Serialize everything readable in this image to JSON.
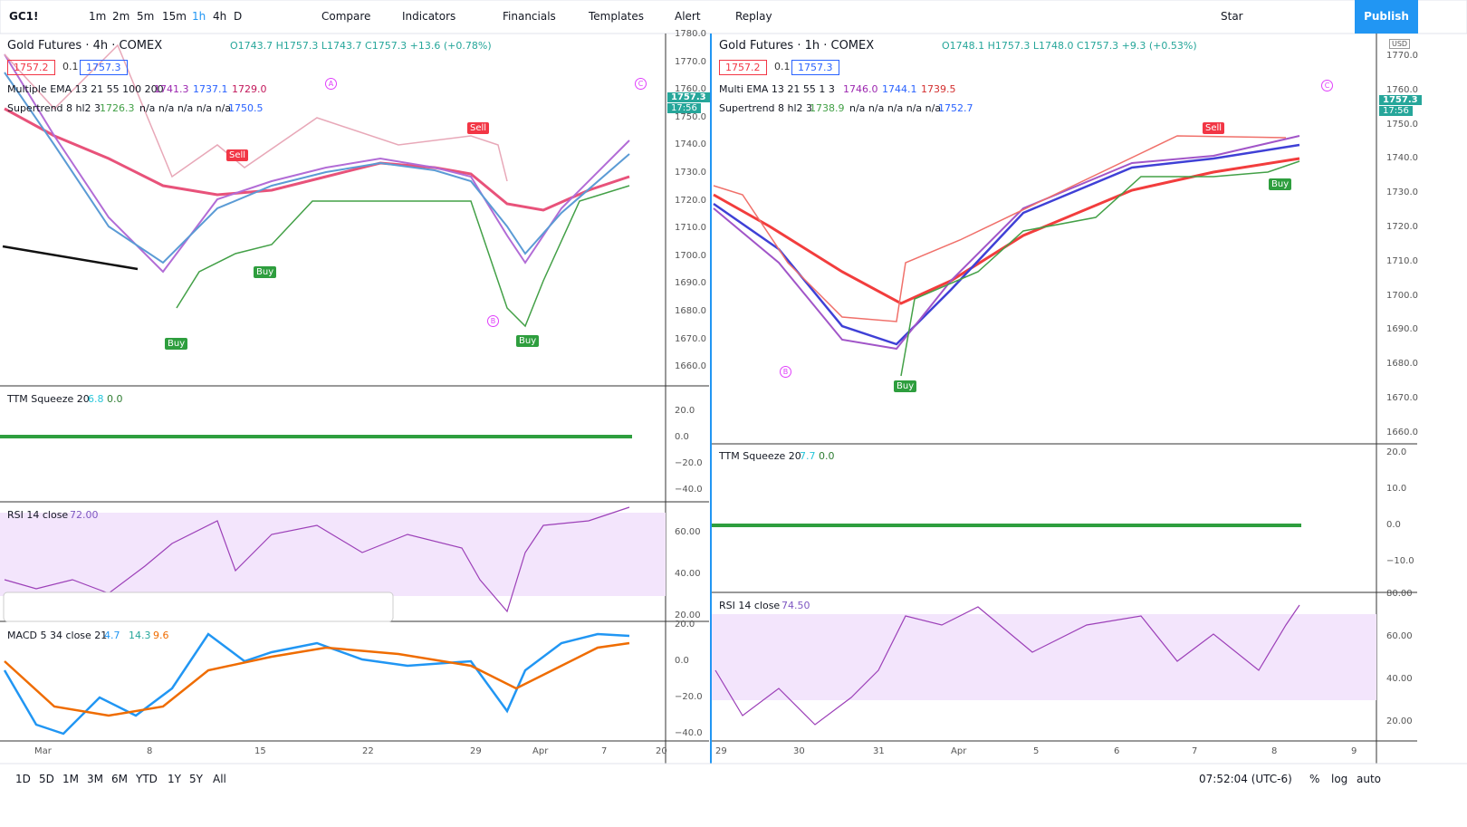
{
  "toolbar": {
    "symbol": "GC1!",
    "intervals": [
      "1m",
      "2m",
      "5m",
      "15m",
      "1h",
      "4h",
      "D"
    ],
    "buttons": [
      "Compare",
      "Indicators",
      "Financials",
      "Templates",
      "Alert",
      "Replay"
    ],
    "layout": "Star",
    "publish": "Publish"
  },
  "left": {
    "title": "Gold Futures · 4h · COMEX",
    "ohlc": "O1743.7 H1757.3 L1743.7 C1757.3 +13.6 (+0.78%)",
    "boxes": [
      "1757.2",
      "0.1",
      "1757.3"
    ],
    "ema": {
      "label": "Multiple EMA 13 21 55 100 200",
      "values": [
        "1741.3",
        "1737.1",
        "1729.0"
      ]
    },
    "supertrend": {
      "label": "Supertrend 8 hl2 3",
      "values": [
        "1726.3",
        "n/a n/a n/a n/a n/a",
        "1750.5"
      ]
    },
    "price_axis": [
      "1780.0",
      "1770.0",
      "1760.0",
      "1750.0",
      "1740.0",
      "1730.0",
      "1720.0",
      "1710.0",
      "1700.0",
      "1690.0",
      "1680.0",
      "1670.0",
      "1660.0"
    ],
    "price_tag": [
      "1757.3",
      "17:56"
    ],
    "ttm": {
      "label": "TTM Squeeze 20",
      "values": [
        "6.8",
        "0.0"
      ],
      "axis": [
        "20.0",
        "0.0",
        "−20.0",
        "−40.0"
      ]
    },
    "rsi": {
      "label": "RSI 14 close",
      "value": "72.00",
      "axis": [
        "60.00",
        "40.00",
        "20.00"
      ]
    },
    "macd": {
      "label": "MACD 5 34 close 21",
      "values": [
        "4.7",
        "14.3",
        "9.6"
      ],
      "axis": [
        "20.0",
        "0.0",
        "−20.0",
        "−40.0"
      ]
    },
    "time_axis": [
      "Mar",
      "8",
      "15",
      "22",
      "29",
      "Apr",
      "7",
      "20"
    ],
    "signals": [
      "Sell",
      "Sell",
      "Buy",
      "Buy",
      "Buy"
    ],
    "markers": [
      "A",
      "B",
      "C"
    ]
  },
  "right": {
    "title": "Gold Futures · 1h · COMEX",
    "ohlc": "O1748.1 H1757.3 L1748.0 C1757.3 +9.3 (+0.53%)",
    "boxes": [
      "1757.2",
      "0.1",
      "1757.3"
    ],
    "ema": {
      "label": "Multi EMA 13 21 55 1 3",
      "values": [
        "1746.0",
        "1744.1",
        "1739.5"
      ]
    },
    "supertrend": {
      "label": "Supertrend 8 hl2 3",
      "values": [
        "1738.9",
        "n/a n/a n/a n/a n/a",
        "1752.7"
      ]
    },
    "currency": "USD",
    "price_axis": [
      "1770.0",
      "1760.0",
      "1750.0",
      "1740.0",
      "1730.0",
      "1720.0",
      "1710.0",
      "1700.0",
      "1690.0",
      "1680.0",
      "1670.0",
      "1660.0"
    ],
    "price_tag": [
      "1757.3",
      "17:56"
    ],
    "ttm": {
      "label": "TTM Squeeze 20",
      "values": [
        "7.7",
        "0.0"
      ],
      "axis": [
        "20.0",
        "10.0",
        "0.0",
        "−10.0"
      ]
    },
    "rsi": {
      "label": "RSI 14 close",
      "value": "74.50",
      "axis": [
        "80.00",
        "60.00",
        "40.00",
        "20.00"
      ]
    },
    "time_axis": [
      "29",
      "30",
      "31",
      "Apr",
      "5",
      "6",
      "7",
      "8",
      "9"
    ],
    "signals": [
      "Sell",
      "Buy",
      "Buy"
    ],
    "markers": [
      "B",
      "C"
    ]
  },
  "bottom": {
    "ranges": [
      "1D",
      "5D",
      "1M",
      "3M",
      "6M",
      "YTD",
      "1Y",
      "5Y",
      "All"
    ],
    "clock": "07:52:04 (UTC-6)",
    "options": [
      "%",
      "log",
      "auto"
    ]
  }
}
